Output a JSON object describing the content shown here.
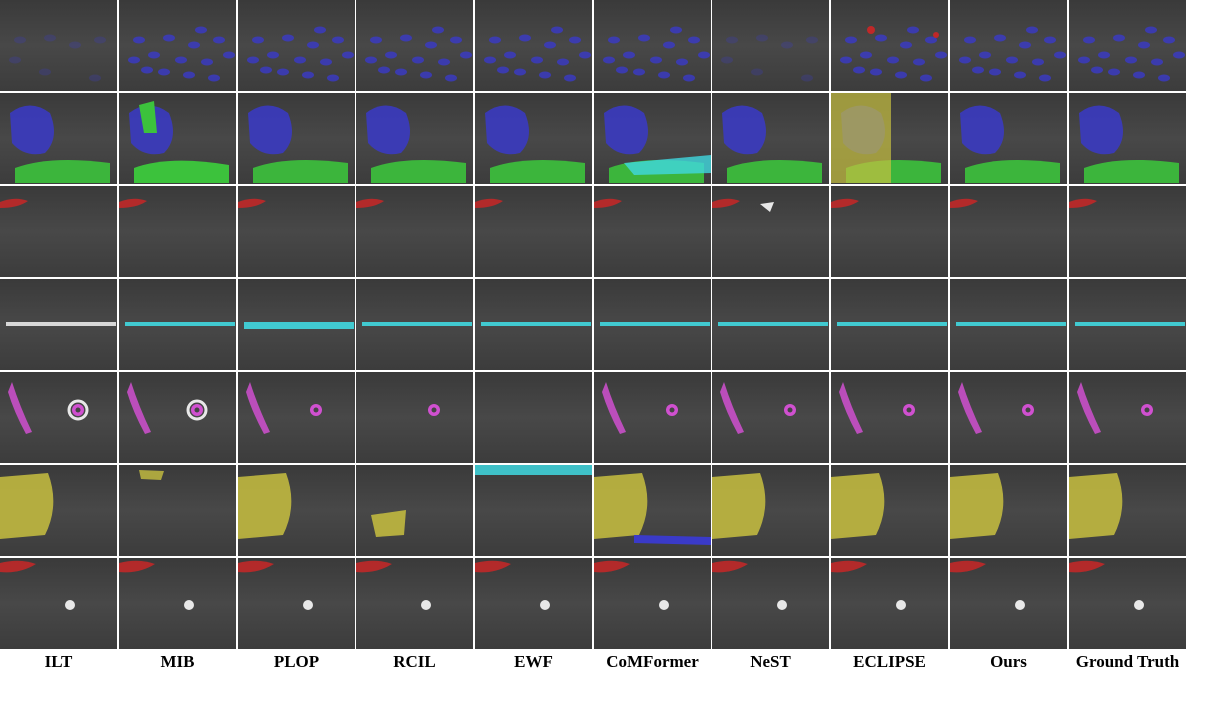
{
  "columns": [
    {
      "label": "ILT"
    },
    {
      "label": "MIB"
    },
    {
      "label": "PLOP"
    },
    {
      "label": "RCIL"
    },
    {
      "label": "EWF"
    },
    {
      "label": "CoMFormer"
    },
    {
      "label": "NeST"
    },
    {
      "label": "ECLIPSE"
    },
    {
      "label": "Ours"
    },
    {
      "label": "Ground Truth"
    }
  ],
  "colors": {
    "blue": "#3a3ac8",
    "green": "#3cc23c",
    "red": "#c02828",
    "cyan": "#40d8e0",
    "magenta": "#d050d0",
    "yellow": "#c8c040",
    "white": "#e8e8e8"
  }
}
